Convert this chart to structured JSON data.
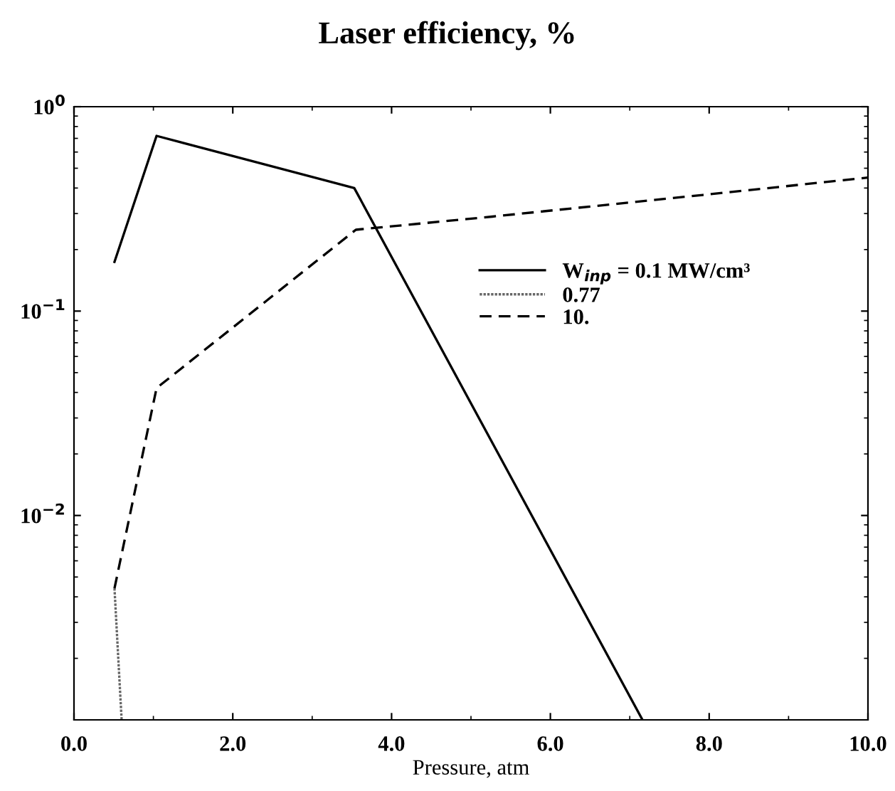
{
  "chart_data": {
    "type": "line",
    "title": "Laser efficiency, %",
    "xlabel": "Pressure, atm",
    "log": "y",
    "xlim": [
      0,
      10
    ],
    "xticks": [
      {
        "value": 0,
        "label": "0.0"
      },
      {
        "value": 2,
        "label": "2.0"
      },
      {
        "value": 4,
        "label": "4.0"
      },
      {
        "value": 6,
        "label": "6.0"
      },
      {
        "value": 8,
        "label": "8.0"
      },
      {
        "value": 10,
        "label": "10.0"
      }
    ],
    "ylim": [
      0.001,
      1
    ],
    "yticks": [
      {
        "value": 0.01,
        "label": "10$^{−2}$"
      },
      {
        "value": 0.1,
        "label": "10$^{−1}$"
      },
      {
        "value": 1,
        "label": "10$^{0}$"
      }
    ],
    "legend": "right",
    "grid": false,
    "series": [
      {
        "name": "W$_{inp}$ = 0.1 MW/cm³",
        "color": "#000000",
        "line_style": "solid",
        "x": [
          0.51,
          1.04,
          3.53,
          7.16
        ],
        "values": [
          0.174,
          0.72,
          0.4,
          0.001
        ]
      },
      {
        "name": "0.77",
        "color": "#666666",
        "line_style": "dotted",
        "x": [
          0.51,
          0.6
        ],
        "values": [
          0.0044,
          0.001
        ]
      },
      {
        "name": "10.",
        "color": "#000000",
        "line_style": "dashed",
        "x": [
          0.51,
          1.04,
          3.55,
          5.27,
          7.92,
          10
        ],
        "values": [
          0.0044,
          0.042,
          0.25,
          0.29,
          0.37,
          0.45
        ]
      }
    ]
  }
}
